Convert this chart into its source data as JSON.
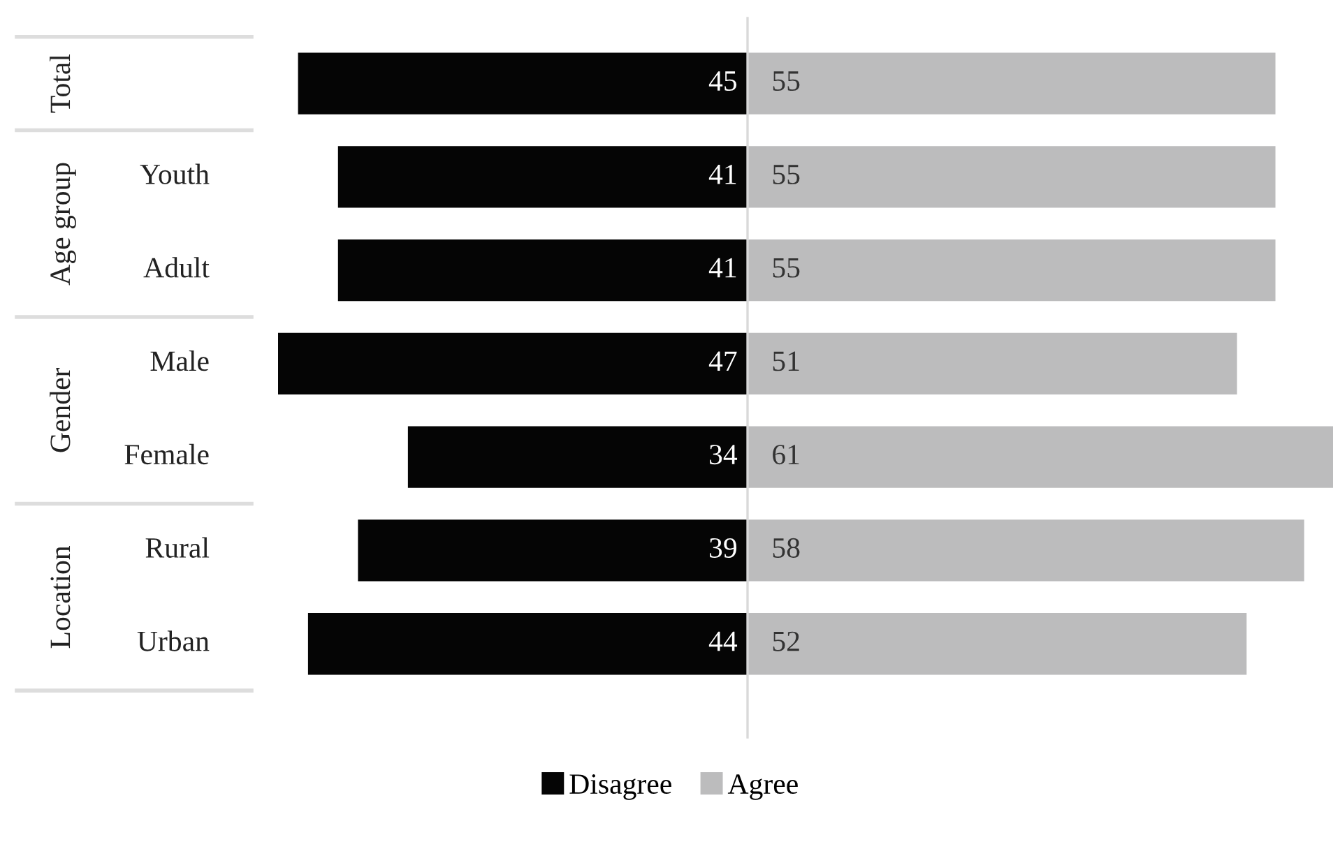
{
  "chart_data": [
    {
      "type": "bar",
      "orientation": "horizontal",
      "categories": [
        null,
        "Youth",
        "Adult",
        "Male",
        "Female",
        "Rural",
        "Urban"
      ],
      "series": [
        {
          "name": "Disagree",
          "color": "#050505",
          "values": [
            45,
            41,
            41,
            47,
            34,
            39,
            44
          ]
        }
      ],
      "annotations": [
        "Total",
        "Age group",
        "Gender",
        "Location"
      ],
      "xlim": [
        47,
        0
      ],
      "data_labels": true,
      "legend": "bottom",
      "tick_labels": false,
      "grid": false
    },
    {
      "type": "bar",
      "orientation": "horizontal",
      "categories": [
        null,
        null,
        null,
        null,
        null,
        null,
        null
      ],
      "series": [
        {
          "name": "Agree",
          "color": "#bcbcbd",
          "values": [
            55,
            55,
            55,
            51,
            61,
            58,
            52
          ]
        }
      ],
      "xlim": [
        0,
        61
      ],
      "data_labels": true,
      "legend": "bottom",
      "tick_labels": false,
      "grid": false
    }
  ]
}
